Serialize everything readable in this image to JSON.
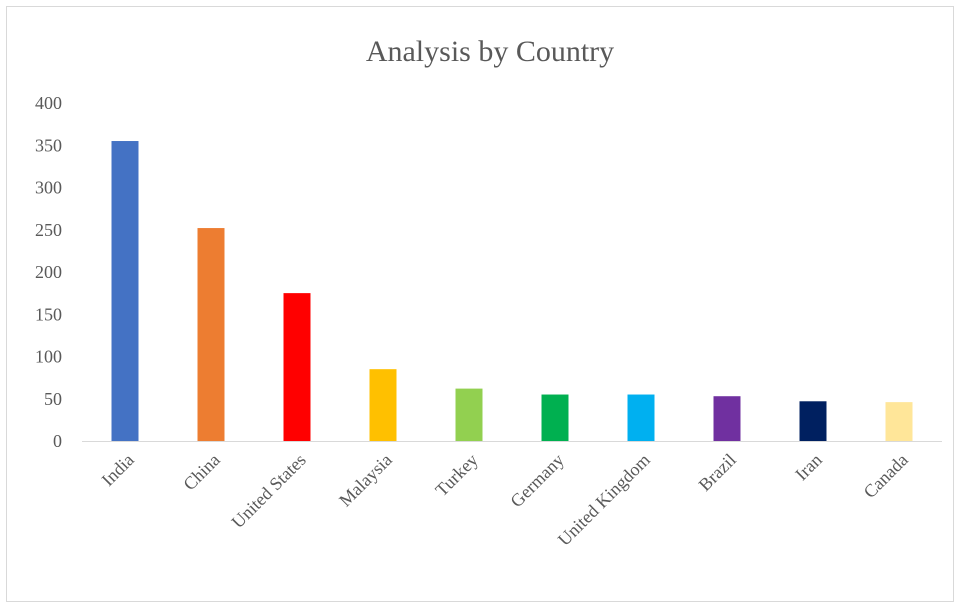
{
  "chart_data": {
    "type": "bar",
    "title": "Analysis  by  Country",
    "xlabel": "",
    "ylabel": "",
    "categories": [
      "India",
      "China",
      "United States",
      "Malaysia",
      "Turkey",
      "Germany",
      "United Kingdom",
      "Brazil",
      "Iran",
      "Canada"
    ],
    "values": [
      355,
      252,
      175,
      85,
      62,
      55,
      55,
      53,
      47,
      46
    ],
    "colors": [
      "#4472C4",
      "#ED7D31",
      "#FF0000",
      "#FFC000",
      "#92D050",
      "#00B050",
      "#00B0F0",
      "#7030A0",
      "#002060",
      "#FFE699"
    ],
    "ylim": [
      0,
      400
    ],
    "yticks": [
      0,
      50,
      100,
      150,
      200,
      250,
      300,
      350,
      400
    ],
    "grid": false,
    "legend": "none"
  }
}
